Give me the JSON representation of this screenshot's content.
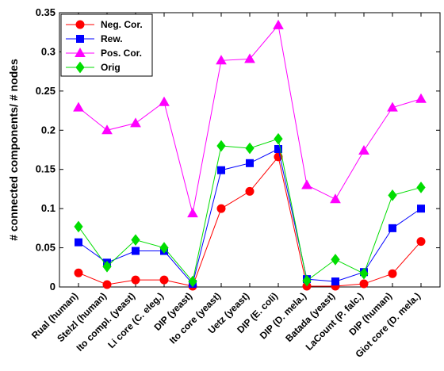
{
  "chart_data": {
    "type": "line",
    "categories": [
      "Rual  (human)",
      "Stelzl (human)",
      "Ito compl. (yeast)",
      "Li core (C. eleg.)",
      "DIP (yeast)",
      "Ito core (yeast)",
      "Uetz (yeast)",
      "DIP (E. coli)",
      "DIP (D. mela.)",
      "Batada (yeast)",
      "LaCount (P. falc.)",
      "DIP (human)",
      "Giot core (D. mela.)"
    ],
    "series": [
      {
        "name": "Neg. Cor.",
        "color": "#ff0000",
        "marker": "circle",
        "values": [
          0.018,
          0.003,
          0.009,
          0.009,
          0.001,
          0.1,
          0.122,
          0.166,
          0.001,
          0.001,
          0.004,
          0.017,
          0.058
        ]
      },
      {
        "name": "Rew.",
        "color": "#0000ff",
        "marker": "square",
        "values": [
          0.057,
          0.031,
          0.046,
          0.046,
          0.004,
          0.149,
          0.158,
          0.176,
          0.01,
          0.007,
          0.019,
          0.075,
          0.1
        ]
      },
      {
        "name": "Pos. Cor.",
        "color": "#ff00ff",
        "marker": "triangle",
        "values": [
          0.229,
          0.2,
          0.209,
          0.236,
          0.094,
          0.289,
          0.291,
          0.334,
          0.13,
          0.112,
          0.174,
          0.229,
          0.24
        ]
      },
      {
        "name": "Orig",
        "color": "#00dd00",
        "marker": "diamond",
        "values": [
          0.077,
          0.026,
          0.06,
          0.05,
          0.007,
          0.18,
          0.177,
          0.189,
          0.008,
          0.035,
          0.017,
          0.117,
          0.127
        ]
      }
    ],
    "title": "",
    "xlabel": "",
    "ylabel": "# connected components/ # nodes",
    "ylim": [
      0,
      0.35
    ],
    "yticks": [
      0,
      0.05,
      0.1,
      0.15,
      0.2,
      0.25,
      0.3,
      0.35
    ],
    "ytick_labels": [
      "0",
      "0.05",
      "0.1",
      "0.15",
      "0.2",
      "0.25",
      "0.3",
      "0.35"
    ],
    "grid": false,
    "legend_position": "top-left"
  }
}
